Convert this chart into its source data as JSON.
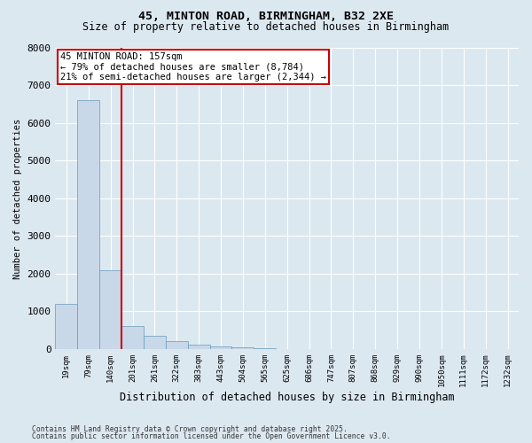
{
  "title_line1": "45, MINTON ROAD, BIRMINGHAM, B32 2XE",
  "title_line2": "Size of property relative to detached houses in Birmingham",
  "xlabel": "Distribution of detached houses by size in Birmingham",
  "ylabel": "Number of detached properties",
  "categories": [
    "19sqm",
    "79sqm",
    "140sqm",
    "201sqm",
    "261sqm",
    "322sqm",
    "383sqm",
    "443sqm",
    "504sqm",
    "565sqm",
    "625sqm",
    "686sqm",
    "747sqm",
    "807sqm",
    "868sqm",
    "929sqm",
    "990sqm",
    "1050sqm",
    "1111sqm",
    "1172sqm",
    "1232sqm"
  ],
  "values": [
    1200,
    6600,
    2100,
    600,
    350,
    200,
    120,
    70,
    40,
    20,
    10,
    5,
    3,
    2,
    1,
    1,
    1,
    0,
    0,
    0,
    0
  ],
  "bar_color": "#c8d8e8",
  "bar_edge_color": "#6699bb",
  "red_line_x": 2.5,
  "annotation_text": "45 MINTON ROAD: 157sqm\n← 79% of detached houses are smaller (8,784)\n21% of semi-detached houses are larger (2,344) →",
  "annotation_box_color": "#ffffff",
  "annotation_box_edge_color": "#cc0000",
  "red_line_color": "#cc0000",
  "ylim": [
    0,
    8000
  ],
  "yticks": [
    0,
    1000,
    2000,
    3000,
    4000,
    5000,
    6000,
    7000,
    8000
  ],
  "footer_line1": "Contains HM Land Registry data © Crown copyright and database right 2025.",
  "footer_line2": "Contains public sector information licensed under the Open Government Licence v3.0.",
  "background_color": "#dce8f0",
  "plot_bg_color": "#dce8f0",
  "grid_color": "#ffffff"
}
